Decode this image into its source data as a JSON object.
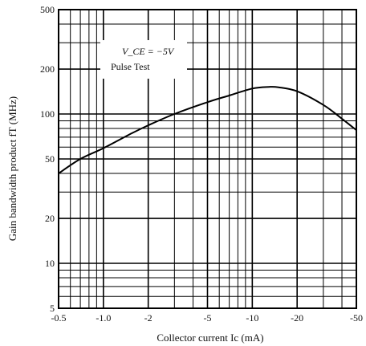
{
  "chart_data": {
    "type": "line",
    "title": "",
    "xlabel": "Collector current  Ic  (mA)",
    "ylabel": "Gain bandwidth product  fT  (MHz)",
    "x_scale": "log",
    "y_scale": "log",
    "xlim": [
      -0.5,
      -50
    ],
    "ylim": [
      5,
      500
    ],
    "grid": true,
    "x_tick_labels": [
      "-0.5",
      "-1.0",
      "-2",
      "-5",
      "-10",
      "-20",
      "-50"
    ],
    "x_tick_values": [
      -0.5,
      -1,
      -2,
      -5,
      -10,
      -20,
      -50
    ],
    "y_tick_labels": [
      "5",
      "10",
      "20",
      "50",
      "100",
      "200",
      "500"
    ],
    "y_tick_values": [
      5,
      10,
      20,
      50,
      100,
      200,
      500
    ],
    "annotations": [
      "V_CE = −5V",
      "Pulse Test"
    ],
    "series": [
      {
        "x": [
          -0.5,
          -0.7,
          -1.0,
          -1.5,
          -2,
          -3,
          -5,
          -7,
          -10,
          -13,
          -15,
          -20,
          -30,
          -40,
          -50
        ],
        "y": [
          40,
          50,
          59,
          73,
          84,
          100,
          120,
          133,
          148,
          152,
          151,
          142,
          115,
          93,
          78
        ]
      }
    ]
  }
}
